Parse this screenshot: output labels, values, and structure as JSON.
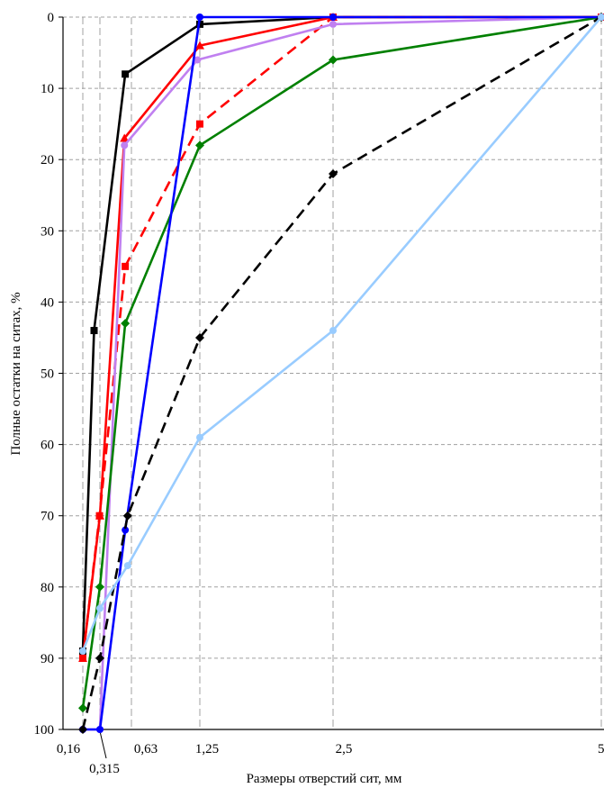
{
  "chart_data": {
    "type": "line",
    "title": "",
    "xlabel": "Размеры отверстий сит, мм",
    "ylabel": "Полные остатки на ситах, %",
    "y_inverted": true,
    "ylim": [
      0,
      100
    ],
    "y_ticks": [
      0,
      10,
      20,
      30,
      40,
      50,
      60,
      70,
      80,
      90,
      100
    ],
    "y_tick_labels": [
      "0",
      "10",
      "20",
      "30",
      "40",
      "50",
      "60",
      "70",
      "80",
      "90",
      "100"
    ],
    "x_ticks": [
      {
        "label": "0,16"
      },
      {
        "label": "0,315"
      },
      {
        "label": "0,63"
      },
      {
        "label": "1,25"
      },
      {
        "label": "2,5"
      },
      {
        "label": "5"
      }
    ],
    "x_scale": "log",
    "xlim": [
      0.16,
      5
    ],
    "grid": true,
    "legend": "none",
    "series": [
      {
        "color": "#000000",
        "dash": "solid",
        "marker": "square",
        "x": [
          0.16,
          0.25,
          0.55,
          1.25,
          2.5,
          5
        ],
        "y": [
          89,
          44,
          8,
          1,
          0,
          0
        ]
      },
      {
        "color": "#ff0000",
        "dash": "solid",
        "marker": "triangle",
        "x": [
          0.16,
          0.315,
          0.54,
          1.25,
          2.5,
          5
        ],
        "y": [
          90,
          70,
          17,
          4,
          0,
          0
        ]
      },
      {
        "color": "#ff0000",
        "dash": "dashed",
        "marker": "square",
        "x": [
          0.16,
          0.31,
          0.55,
          1.25,
          2.5,
          5
        ],
        "y": [
          90,
          70,
          35,
          15,
          0,
          0
        ]
      },
      {
        "color": "#c080f0",
        "dash": "solid",
        "marker": "circle",
        "x": [
          0.16,
          0.315,
          0.54,
          1.22,
          2.5,
          5
        ],
        "y": [
          100,
          100,
          18,
          6,
          1,
          0
        ]
      },
      {
        "color": "#008000",
        "dash": "solid",
        "marker": "diamond",
        "x": [
          0.16,
          0.315,
          0.55,
          1.25,
          2.5,
          5
        ],
        "y": [
          97,
          80,
          43,
          18,
          6,
          0
        ]
      },
      {
        "color": "#0000ff",
        "dash": "solid",
        "marker": "circle",
        "x": [
          0.16,
          0.315,
          0.55,
          1.25,
          2.5,
          5
        ],
        "y": [
          100,
          100,
          72,
          0,
          0,
          0
        ]
      },
      {
        "color": "#000000",
        "dash": "dashed",
        "marker": "diamond",
        "x": [
          0.16,
          0.315,
          0.58,
          1.25,
          2.5,
          5
        ],
        "y": [
          100,
          90,
          70,
          45,
          22,
          0
        ]
      },
      {
        "color": "#99ccff",
        "dash": "solid",
        "marker": "circle",
        "x": [
          0.16,
          0.315,
          0.58,
          1.25,
          2.5,
          5
        ],
        "y": [
          89,
          83,
          77,
          59,
          44,
          0
        ]
      }
    ]
  }
}
